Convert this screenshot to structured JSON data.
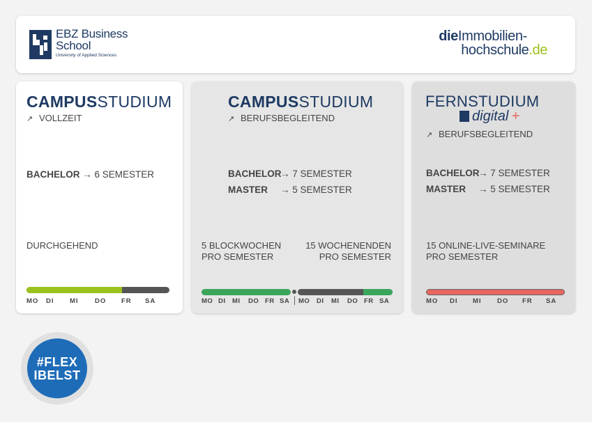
{
  "header": {
    "ebz_title": "EBZ Business School",
    "ebz_title_line1": "EBZ Business",
    "ebz_title_line2": "School",
    "ebz_subtitle": "University of Applied Sciences",
    "die_bold": "die",
    "die_line1": "Immobilien-",
    "die_line2": "hochschule",
    "die_tld": ".de"
  },
  "cards": [
    {
      "title_bold": "CAMPUS",
      "title_rest": "STUDIUM",
      "subtitle": "VOLLZEIT",
      "rows": [
        {
          "label": "BACHELOR",
          "value": "6 SEMESTER"
        }
      ],
      "schedule": "DURCHGEHEND",
      "days": [
        "MO",
        "DI",
        "MI",
        "DO",
        "FR",
        "SA"
      ],
      "bar_fill": 0.67,
      "bar_color": "#9bc21c"
    },
    {
      "title_bold": "CAMPUS",
      "title_rest": "STUDIUM",
      "subtitle": "BERUFSBEGLEITEND",
      "rows": [
        {
          "label": "BACHELOR",
          "value": "7 SEMESTER"
        },
        {
          "label": "MASTER",
          "value": "5 SEMESTER"
        }
      ],
      "schedule_left_1": "5 BLOCKWOCHEN",
      "schedule_left_2": "PRO SEMESTER",
      "schedule_right_1": "15 WOCHENENDEN",
      "schedule_right_2": "PRO SEMESTER",
      "days_left": [
        "MO",
        "DI",
        "MI",
        "DO",
        "FR",
        "SA"
      ],
      "days_right": [
        "MO",
        "DI",
        "MI",
        "DO",
        "FR",
        "SA"
      ],
      "bar_color": "#3ca55c"
    },
    {
      "title_bold": "FERN",
      "title_rest": "STUDIUM",
      "digital_label": "digital",
      "digital_plus": "+",
      "subtitle": "BERUFSBEGLEITEND",
      "rows": [
        {
          "label": "BACHELOR",
          "value": "7 SEMESTER"
        },
        {
          "label": "MASTER",
          "value": "5 SEMESTER"
        }
      ],
      "schedule_1": "15 ONLINE-LIVE-SEMINARE",
      "schedule_2": "PRO SEMESTER",
      "days": [
        "MO",
        "DI",
        "MI",
        "DO",
        "FR",
        "SA"
      ],
      "bar_color": "#e8675f"
    }
  ],
  "badge": {
    "line1": "#FLEX",
    "line2": "IBELST"
  },
  "colors": {
    "navy": "#1e3a63",
    "green": "#9bc21c",
    "badge_blue": "#1e6cb8"
  }
}
